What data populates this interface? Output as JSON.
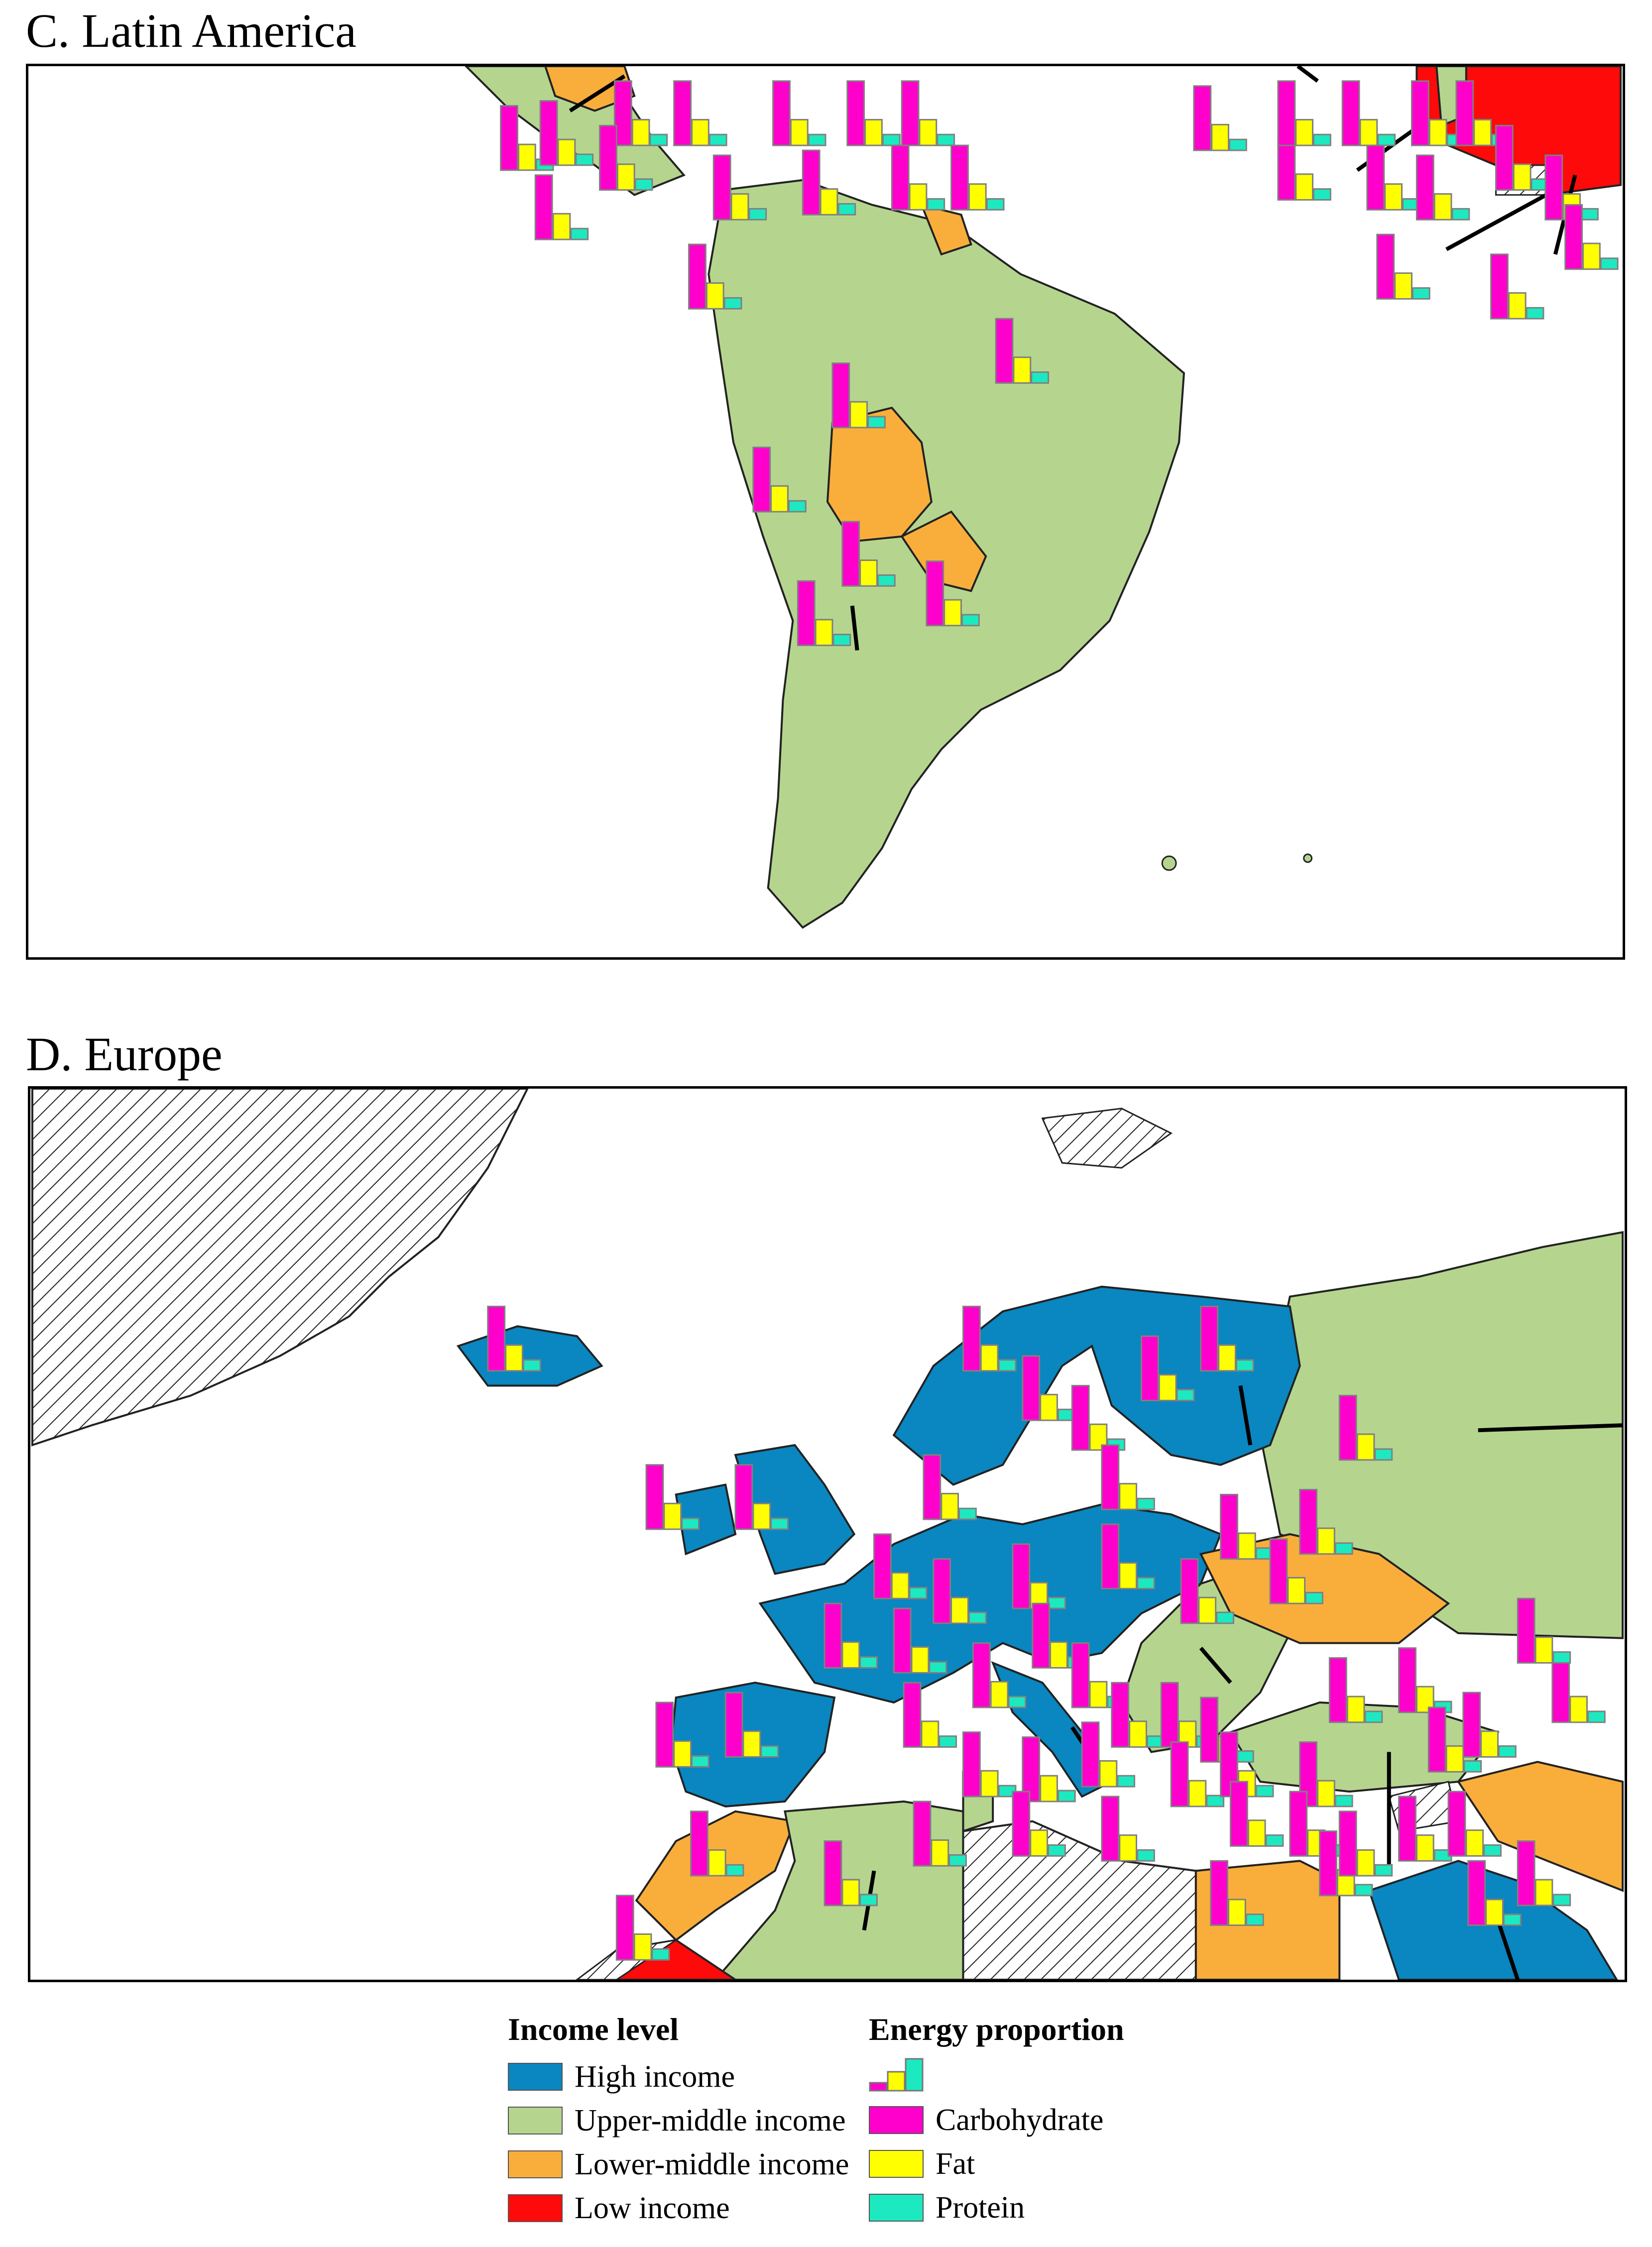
{
  "panels": {
    "latin_america": {
      "title": "C. Latin America"
    },
    "europe": {
      "title": "D. Europe"
    }
  },
  "legend": {
    "income_title": "Income level",
    "income_items": [
      {
        "label": "High income",
        "color": "#0a86c0"
      },
      {
        "label": "Upper-middle income",
        "color": "#b5d58f"
      },
      {
        "label": "Lower-middle income",
        "color": "#f9ae3c"
      },
      {
        "label": "Low income",
        "color": "#ff0a0a"
      }
    ],
    "energy_title": "Energy proportion",
    "energy_items": [
      {
        "label": "Carbohydrate",
        "color": "#ff00cc"
      },
      {
        "label": "Fat",
        "color": "#ffff00"
      },
      {
        "label": "Protein",
        "color": "#1de9c0"
      }
    ],
    "no_data_pattern": "diagonal-hatch"
  }
}
